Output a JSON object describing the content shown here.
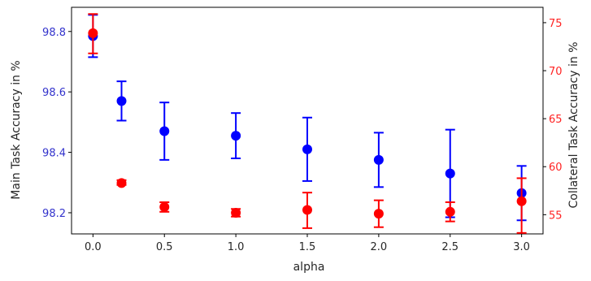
{
  "chart_data": {
    "type": "scatter",
    "xlabel": "alpha",
    "y_left_label": "Main Task Accuracy in %",
    "y_right_label": "Collateral Task Accuracy in %",
    "x_ticks": [
      0.0,
      0.5,
      1.0,
      1.5,
      2.0,
      2.5,
      3.0
    ],
    "x_tick_labels": [
      "0.0",
      "0.5",
      "1.0",
      "1.5",
      "2.0",
      "2.5",
      "3.0"
    ],
    "xlim": [
      -0.15,
      3.15
    ],
    "y_left_ticks": [
      98.2,
      98.4,
      98.6,
      98.8
    ],
    "y_left_tick_labels": [
      "98.2",
      "98.4",
      "98.6",
      "98.8"
    ],
    "y_left_lim": [
      98.13,
      98.88
    ],
    "y_right_ticks": [
      55,
      60,
      65,
      70,
      75
    ],
    "y_right_tick_labels": [
      "55",
      "60",
      "65",
      "70",
      "75"
    ],
    "y_right_lim": [
      53.0,
      76.6
    ],
    "grid": false,
    "colors": {
      "left_axis": "#3333cc",
      "right_axis": "#ff2222",
      "main_series": "#0000ff",
      "collateral_series": "#ff0000"
    },
    "series": [
      {
        "axis": "left",
        "color": "#0000ff",
        "x": [
          0.0,
          0.2,
          0.5,
          1.0,
          1.5,
          2.0,
          2.5,
          3.0
        ],
        "y": [
          98.785,
          98.57,
          98.47,
          98.455,
          98.41,
          98.375,
          98.33,
          98.265
        ],
        "yerr_low": [
          98.715,
          98.505,
          98.375,
          98.38,
          98.305,
          98.285,
          98.185,
          98.175
        ],
        "yerr_high": [
          98.855,
          98.635,
          98.565,
          98.53,
          98.515,
          98.465,
          98.475,
          98.355
        ]
      },
      {
        "axis": "right",
        "color": "#ff0000",
        "x": [
          0.0,
          0.2,
          0.5,
          1.0,
          1.5,
          2.0,
          2.5,
          3.0
        ],
        "y": [
          73.9,
          58.3,
          55.8,
          55.2,
          55.5,
          55.1,
          55.3,
          56.4
        ],
        "yerr_low": [
          71.8,
          58.1,
          55.3,
          54.8,
          53.6,
          53.7,
          54.3,
          53.1
        ],
        "yerr_high": [
          75.9,
          58.6,
          56.3,
          55.6,
          57.3,
          56.5,
          56.3,
          58.8
        ]
      }
    ]
  }
}
